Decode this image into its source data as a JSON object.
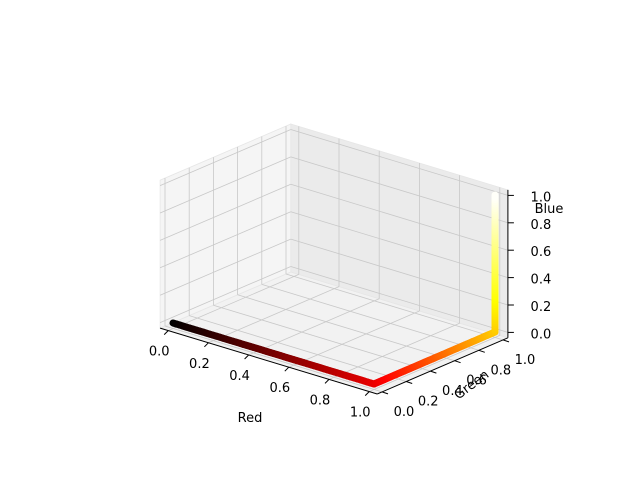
{
  "chart_data": {
    "type": "line",
    "projection": "3d",
    "xlabel": "Red",
    "ylabel": "Green",
    "zlabel": "Blue",
    "xlim": [
      0,
      1
    ],
    "ylim": [
      0,
      1
    ],
    "zlim": [
      0,
      1
    ],
    "x_ticks": [
      "0.0",
      "0.2",
      "0.4",
      "0.6",
      "0.8",
      "1.0"
    ],
    "y_ticks": [
      "0.0",
      "0.2",
      "0.4",
      "0.6",
      "0.8",
      "1.0"
    ],
    "z_ticks": [
      "0.0",
      "0.2",
      "0.4",
      "0.6",
      "0.8",
      "1.0"
    ],
    "grid": true,
    "pane_color": "#f2f2f2",
    "grid_color": "#c8c8c8",
    "series": [
      {
        "colormap": "hot",
        "segments": [
          {
            "from": [
              0.0,
              0.0,
              0.0
            ],
            "to": [
              1.0,
              0.0,
              0.0
            ]
          },
          {
            "from": [
              1.0,
              0.0,
              0.0
            ],
            "to": [
              1.0,
              1.0,
              0.0
            ]
          },
          {
            "from": [
              1.0,
              1.0,
              0.0
            ],
            "to": [
              1.0,
              1.0,
              1.0
            ]
          }
        ]
      }
    ]
  }
}
